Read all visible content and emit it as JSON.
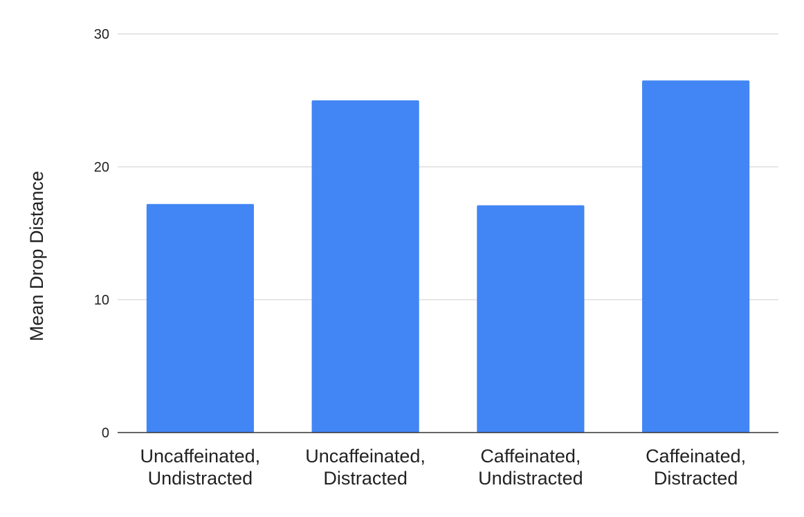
{
  "chart_data": {
    "type": "bar",
    "title": "",
    "xlabel": "",
    "ylabel": "Mean Drop Distance",
    "categories": [
      [
        "Uncaffeinated,",
        "Undistracted"
      ],
      [
        "Uncaffeinated,",
        "Distracted"
      ],
      [
        "Caffeinated,",
        "Undistracted"
      ],
      [
        "Caffeinated,",
        "Distracted"
      ]
    ],
    "values": [
      17.2,
      25.0,
      17.1,
      26.5
    ],
    "ylim": [
      0,
      30
    ],
    "yticks": [
      "0",
      "10",
      "20",
      "30"
    ],
    "grid": true,
    "legend": "none",
    "colors": {
      "bar": "#4285f4",
      "grid": "#cccccc",
      "axis": "#333333",
      "text": "#222222"
    }
  }
}
